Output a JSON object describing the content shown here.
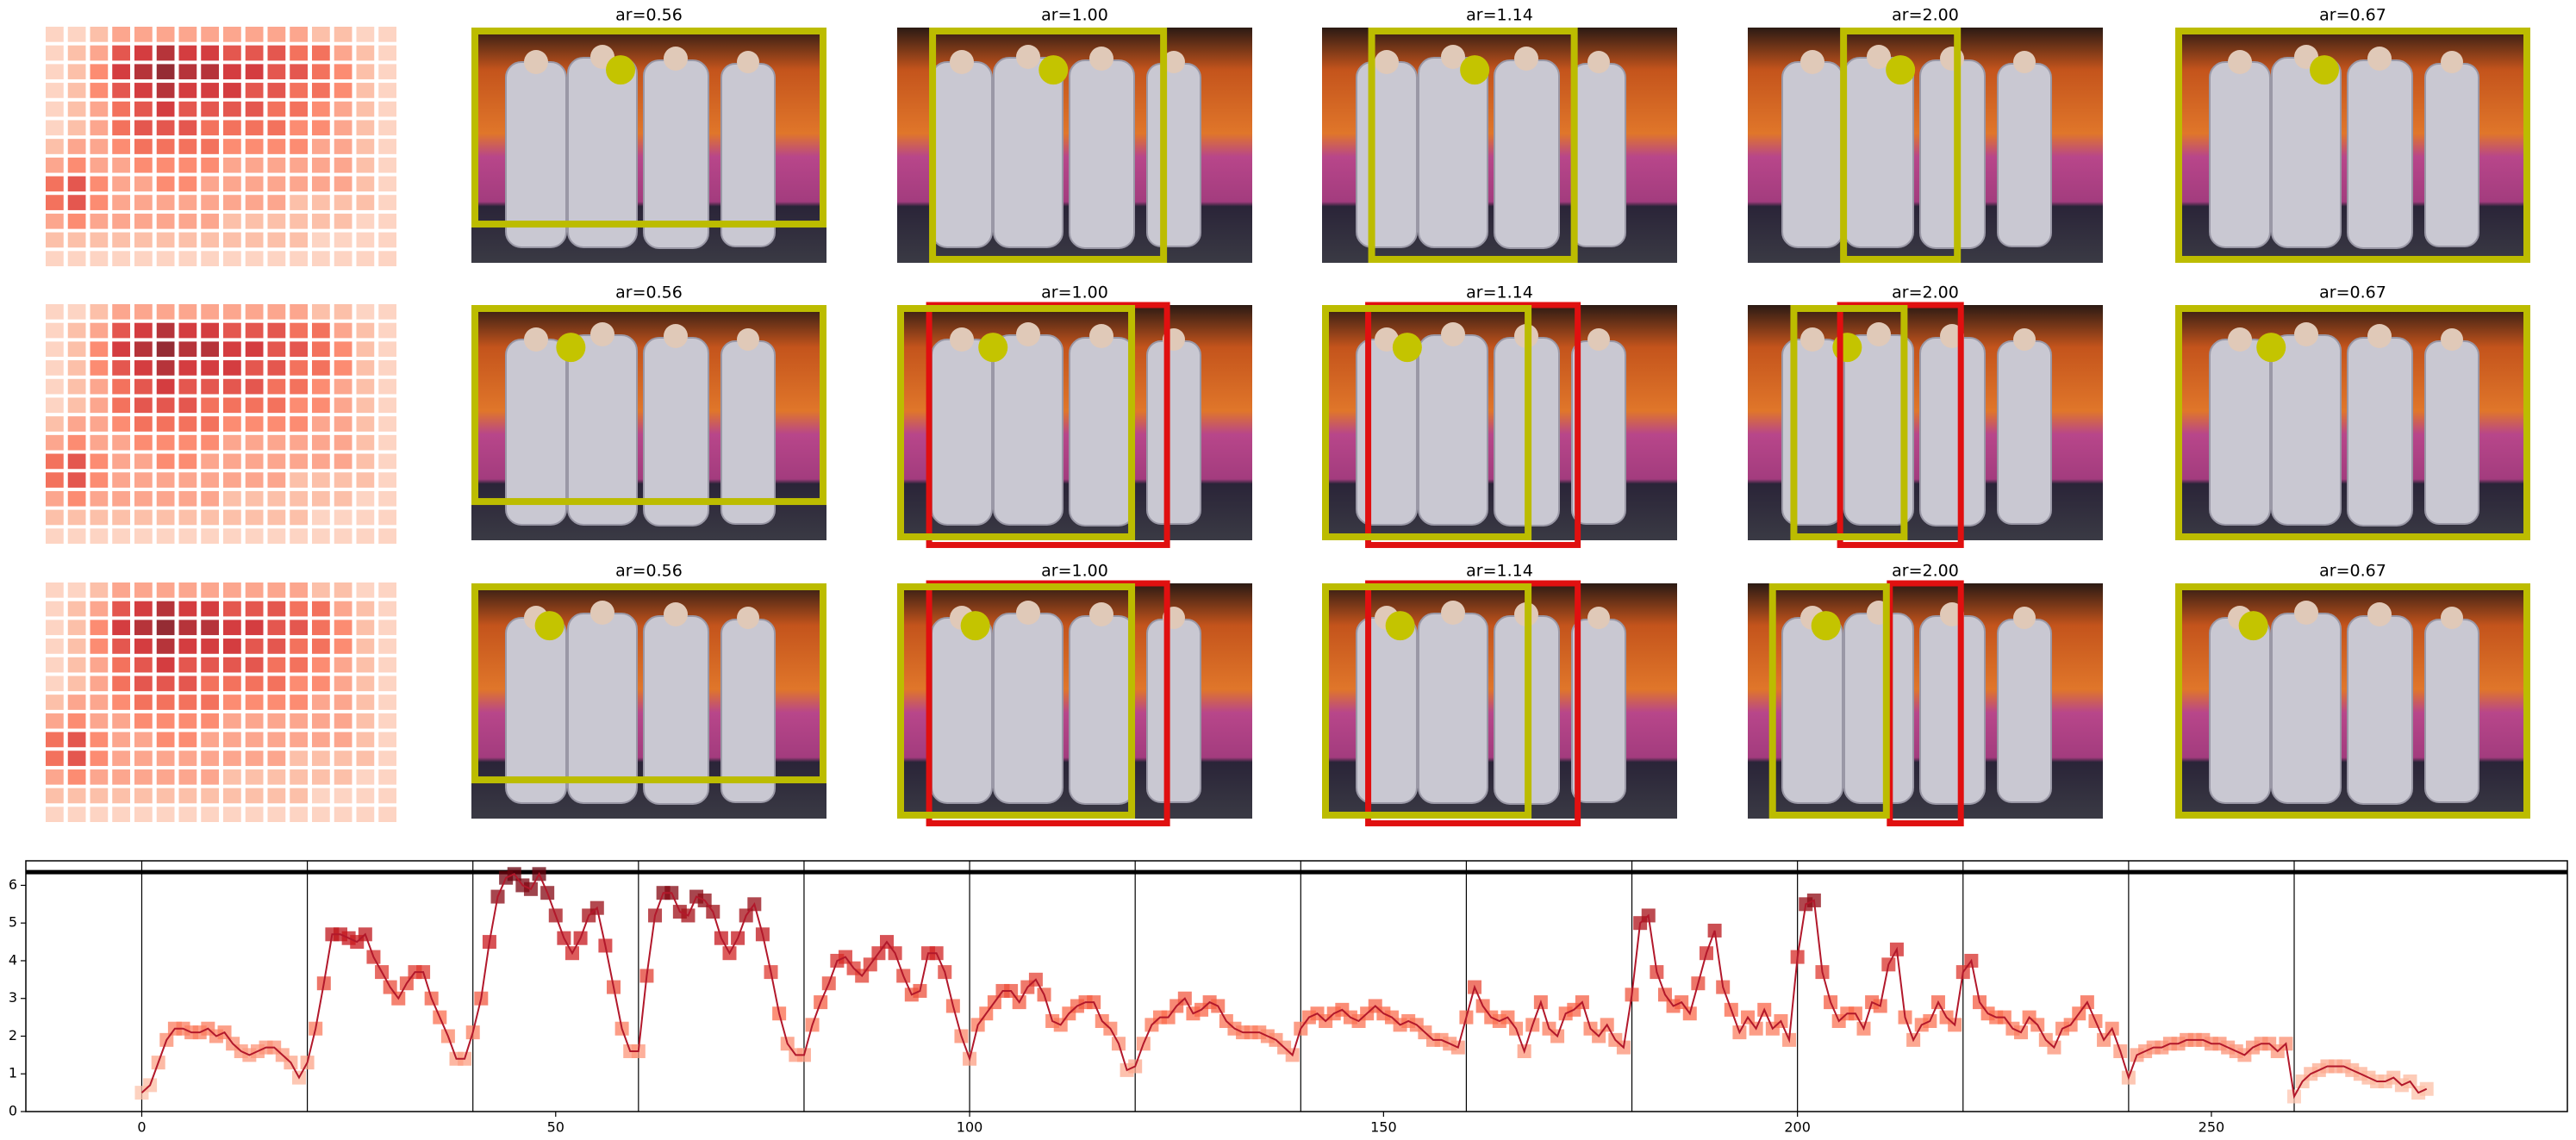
{
  "panels": {
    "titles": [
      [
        "ar=0.56",
        "ar=1.00",
        "ar=1.14",
        "ar=2.00",
        "ar=0.67"
      ],
      [
        "ar=0.56",
        "ar=1.00",
        "ar=1.14",
        "ar=2.00",
        "ar=0.67"
      ],
      [
        "ar=0.56",
        "ar=1.00",
        "ar=1.14",
        "ar=2.00",
        "ar=0.67"
      ]
    ],
    "attention_map": [
      [
        1,
        1,
        2,
        3,
        3,
        3,
        3,
        3,
        3,
        3,
        3,
        3,
        2,
        2,
        1,
        1
      ],
      [
        1,
        2,
        3,
        6,
        7,
        8,
        7,
        7,
        6,
        6,
        6,
        5,
        5,
        3,
        2,
        1
      ],
      [
        1,
        2,
        4,
        7,
        8,
        9,
        8,
        8,
        7,
        7,
        6,
        6,
        5,
        4,
        2,
        1
      ],
      [
        1,
        2,
        4,
        6,
        7,
        8,
        7,
        7,
        7,
        6,
        6,
        5,
        5,
        4,
        2,
        1
      ],
      [
        1,
        2,
        3,
        5,
        6,
        7,
        6,
        6,
        6,
        6,
        5,
        5,
        4,
        3,
        2,
        1
      ],
      [
        1,
        2,
        3,
        5,
        6,
        6,
        6,
        5,
        5,
        5,
        5,
        4,
        4,
        3,
        2,
        1
      ],
      [
        2,
        3,
        3,
        4,
        5,
        5,
        5,
        5,
        4,
        4,
        4,
        4,
        3,
        3,
        2,
        1
      ],
      [
        3,
        4,
        3,
        3,
        4,
        4,
        4,
        4,
        3,
        3,
        3,
        3,
        3,
        3,
        2,
        1
      ],
      [
        5,
        6,
        4,
        3,
        3,
        4,
        4,
        3,
        3,
        3,
        3,
        3,
        3,
        3,
        2,
        1
      ],
      [
        5,
        6,
        4,
        3,
        3,
        3,
        3,
        3,
        3,
        3,
        3,
        2,
        2,
        2,
        2,
        1
      ],
      [
        3,
        4,
        3,
        3,
        3,
        3,
        3,
        3,
        2,
        2,
        2,
        2,
        2,
        2,
        1,
        1
      ],
      [
        2,
        2,
        2,
        2,
        2,
        2,
        2,
        2,
        2,
        2,
        2,
        2,
        1,
        1,
        1,
        1
      ],
      [
        1,
        1,
        1,
        1,
        1,
        1,
        1,
        1,
        1,
        1,
        1,
        1,
        1,
        1,
        1,
        1
      ]
    ]
  },
  "chart_data": {
    "type": "line",
    "x": [
      0,
      1,
      2,
      3,
      4,
      5,
      6,
      7,
      8,
      9,
      10,
      11,
      12,
      13,
      14,
      15,
      16,
      17,
      18,
      19,
      20,
      21,
      22,
      23,
      24,
      25,
      26,
      27,
      28,
      29,
      30,
      31,
      32,
      33,
      34,
      35,
      36,
      37,
      38,
      39,
      40,
      41,
      42,
      43,
      44,
      45,
      46,
      47,
      48,
      49,
      50,
      51,
      52,
      53,
      54,
      55,
      56,
      57,
      58,
      59,
      60,
      61,
      62,
      63,
      64,
      65,
      66,
      67,
      68,
      69,
      70,
      71,
      72,
      73,
      74,
      75,
      76,
      77,
      78,
      79,
      80,
      81,
      82,
      83,
      84,
      85,
      86,
      87,
      88,
      89,
      90,
      91,
      92,
      93,
      94,
      95,
      96,
      97,
      98,
      99,
      100,
      101,
      102,
      103,
      104,
      105,
      106,
      107,
      108,
      109,
      110,
      111,
      112,
      113,
      114,
      115,
      116,
      117,
      118,
      119,
      120,
      121,
      122,
      123,
      124,
      125,
      126,
      127,
      128,
      129,
      130,
      131,
      132,
      133,
      134,
      135,
      136,
      137,
      138,
      139,
      140,
      141,
      142,
      143,
      144,
      145,
      146,
      147,
      148,
      149,
      150,
      151,
      152,
      153,
      154,
      155,
      156,
      157,
      158,
      159,
      160,
      161,
      162,
      163,
      164,
      165,
      166,
      167,
      168,
      169,
      170,
      171,
      172,
      173,
      174,
      175,
      176,
      177,
      178,
      179,
      180,
      181,
      182,
      183,
      184,
      185,
      186,
      187,
      188,
      189,
      190,
      191,
      192,
      193,
      194,
      195,
      196,
      197,
      198,
      199,
      200,
      201,
      202,
      203,
      204,
      205,
      206,
      207,
      208,
      209,
      210,
      211,
      212,
      213,
      214,
      215,
      216,
      217,
      218,
      219,
      220,
      221,
      222,
      223,
      224,
      225,
      226,
      227,
      228,
      229,
      230,
      231,
      232,
      233,
      234,
      235,
      236,
      237,
      238,
      239,
      240,
      241,
      242,
      243,
      244,
      245,
      246,
      247,
      248,
      249,
      250,
      251,
      252,
      253,
      254,
      255,
      256,
      257,
      258,
      259,
      260,
      261,
      262,
      263,
      264,
      265,
      266,
      267,
      268,
      269,
      270,
      271,
      272,
      273,
      274,
      275,
      276
    ],
    "values": [
      0.5,
      0.7,
      1.3,
      1.9,
      2.2,
      2.2,
      2.1,
      2.1,
      2.2,
      2.0,
      2.1,
      1.8,
      1.6,
      1.5,
      1.6,
      1.7,
      1.7,
      1.5,
      1.3,
      0.9,
      1.3,
      2.2,
      3.4,
      4.7,
      4.7,
      4.6,
      4.5,
      4.7,
      4.1,
      3.7,
      3.3,
      3.0,
      3.4,
      3.7,
      3.7,
      3.0,
      2.5,
      2.0,
      1.4,
      1.4,
      2.1,
      3.0,
      4.5,
      5.7,
      6.2,
      6.3,
      6.0,
      5.9,
      6.3,
      5.8,
      5.2,
      4.6,
      4.2,
      4.6,
      5.2,
      5.4,
      4.4,
      3.3,
      2.2,
      1.6,
      1.6,
      3.6,
      5.2,
      5.8,
      5.8,
      5.3,
      5.2,
      5.7,
      5.6,
      5.3,
      4.6,
      4.2,
      4.6,
      5.2,
      5.5,
      4.7,
      3.7,
      2.6,
      1.8,
      1.5,
      1.5,
      2.3,
      2.9,
      3.4,
      4.0,
      4.1,
      3.8,
      3.6,
      3.9,
      4.2,
      4.5,
      4.2,
      3.6,
      3.1,
      3.2,
      4.2,
      4.2,
      3.7,
      2.8,
      2.0,
      1.4,
      2.3,
      2.6,
      2.9,
      3.2,
      3.2,
      2.9,
      3.3,
      3.5,
      3.1,
      2.4,
      2.3,
      2.6,
      2.8,
      2.9,
      2.9,
      2.4,
      2.2,
      1.8,
      1.1,
      1.2,
      1.8,
      2.3,
      2.5,
      2.5,
      2.8,
      3.0,
      2.6,
      2.7,
      2.9,
      2.8,
      2.4,
      2.2,
      2.1,
      2.1,
      2.1,
      2.0,
      1.9,
      1.7,
      1.5,
      2.2,
      2.5,
      2.6,
      2.4,
      2.6,
      2.7,
      2.5,
      2.4,
      2.6,
      2.8,
      2.6,
      2.5,
      2.3,
      2.4,
      2.3,
      2.1,
      1.9,
      1.9,
      1.8,
      1.7,
      2.5,
      3.3,
      2.8,
      2.5,
      2.4,
      2.5,
      2.2,
      1.6,
      2.3,
      2.9,
      2.2,
      2.0,
      2.6,
      2.7,
      2.9,
      2.2,
      2.0,
      2.3,
      1.9,
      1.7,
      3.1,
      5.0,
      5.2,
      3.7,
      3.1,
      2.8,
      2.9,
      2.6,
      3.4,
      4.2,
      4.8,
      3.3,
      2.7,
      2.1,
      2.5,
      2.2,
      2.7,
      2.2,
      2.4,
      1.9,
      4.1,
      5.5,
      5.6,
      3.7,
      2.9,
      2.4,
      2.6,
      2.6,
      2.2,
      2.9,
      2.8,
      3.9,
      4.3,
      2.5,
      1.9,
      2.3,
      2.4,
      2.9,
      2.5,
      2.3,
      3.7,
      4.0,
      2.9,
      2.6,
      2.5,
      2.5,
      2.2,
      2.1,
      2.5,
      2.3,
      1.9,
      1.7,
      2.2,
      2.3,
      2.6,
      2.9,
      2.4,
      1.9,
      2.2,
      1.6,
      0.9,
      1.5,
      1.6,
      1.7,
      1.7,
      1.8,
      1.8,
      1.9,
      1.9,
      1.9,
      1.8,
      1.8,
      1.7,
      1.6,
      1.5,
      1.7,
      1.8,
      1.8,
      1.6,
      1.8,
      0.4,
      0.8,
      1.0,
      1.1,
      1.2,
      1.2,
      1.2,
      1.1,
      1.0,
      0.9,
      0.8,
      0.8,
      0.9,
      0.7,
      0.8,
      0.5,
      0.6
    ],
    "color": "#b2182b",
    "xlim": [
      -14,
      293
    ],
    "ylim": [
      0,
      6.65
    ],
    "xticks": [
      0,
      50,
      100,
      150,
      200,
      250
    ],
    "yticks": [
      0,
      1,
      2,
      3,
      4,
      5,
      6
    ],
    "vlines": [
      0,
      20,
      40,
      60,
      80,
      100,
      120,
      140,
      160,
      180,
      200,
      220,
      240,
      260
    ],
    "hline": 6.35
  }
}
